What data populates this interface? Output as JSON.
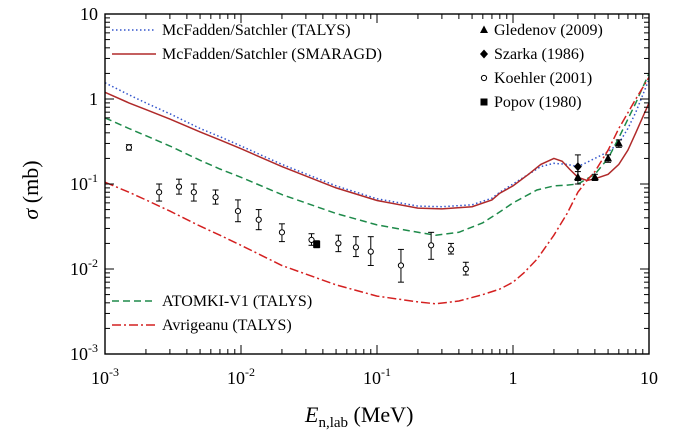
{
  "chart_data": {
    "type": "line",
    "xscale": "log",
    "yscale": "log",
    "xlim": [
      0.001,
      10
    ],
    "ylim": [
      0.001,
      10
    ],
    "xlabel": {
      "main": "E",
      "sub": "n,lab",
      "unit": " (MeV)"
    },
    "ylabel": {
      "main": "σ",
      "unit": " (mb)"
    },
    "x_ticks": [
      {
        "value": 0.001,
        "base": "10",
        "exp": "-3"
      },
      {
        "value": 0.01,
        "base": "10",
        "exp": "-2"
      },
      {
        "value": 0.1,
        "base": "10",
        "exp": "-1"
      },
      {
        "value": 1,
        "text": "1"
      },
      {
        "value": 10,
        "text": "10"
      }
    ],
    "y_ticks": [
      {
        "value": 0.001,
        "base": "10",
        "exp": "-3"
      },
      {
        "value": 0.01,
        "base": "10",
        "exp": "-2"
      },
      {
        "value": 0.1,
        "base": "10",
        "exp": "-1"
      },
      {
        "value": 1,
        "text": "1"
      },
      {
        "value": 10,
        "text": "10"
      }
    ],
    "grid": false,
    "series": [
      {
        "name": "McFadden/Satchler (TALYS)",
        "style": "dotted",
        "color": "#3355cc",
        "legend": "top-left",
        "x": [
          0.001,
          0.0015,
          0.002,
          0.003,
          0.005,
          0.007,
          0.01,
          0.02,
          0.05,
          0.1,
          0.2,
          0.3,
          0.5,
          0.7,
          0.8,
          1.0,
          1.3,
          1.6,
          2.0,
          2.5,
          3.0,
          3.5,
          4.0,
          5.0,
          6.0,
          7.0,
          8.0,
          10.0
        ],
        "y": [
          1.55,
          1.12,
          0.9,
          0.67,
          0.45,
          0.36,
          0.28,
          0.17,
          0.095,
          0.067,
          0.055,
          0.054,
          0.057,
          0.068,
          0.08,
          0.1,
          0.13,
          0.16,
          0.175,
          0.17,
          0.16,
          0.18,
          0.2,
          0.24,
          0.3,
          0.45,
          0.7,
          1.7
        ]
      },
      {
        "name": "McFadden/Satchler (SMARAGD)",
        "style": "solid",
        "color": "#b02a2a",
        "legend": "top-left",
        "x": [
          0.001,
          0.0015,
          0.002,
          0.003,
          0.005,
          0.007,
          0.01,
          0.02,
          0.05,
          0.1,
          0.2,
          0.3,
          0.5,
          0.7,
          0.8,
          1.0,
          1.3,
          1.6,
          2.0,
          2.3,
          2.6,
          3.0,
          3.5,
          4.0,
          5.0,
          6.0,
          7.0,
          8.0,
          10.0
        ],
        "y": [
          1.2,
          0.9,
          0.75,
          0.58,
          0.41,
          0.33,
          0.26,
          0.16,
          0.09,
          0.064,
          0.052,
          0.051,
          0.054,
          0.065,
          0.078,
          0.095,
          0.13,
          0.17,
          0.2,
          0.185,
          0.15,
          0.12,
          0.11,
          0.115,
          0.13,
          0.17,
          0.25,
          0.4,
          0.9
        ]
      },
      {
        "name": "ATOMKI-V1 (TALYS)",
        "style": "dashed",
        "color": "#1e8a4a",
        "legend": "bottom-left",
        "x": [
          0.001,
          0.0015,
          0.002,
          0.003,
          0.005,
          0.007,
          0.01,
          0.02,
          0.05,
          0.1,
          0.2,
          0.27,
          0.4,
          0.6,
          0.8,
          1.0,
          1.5,
          2.0,
          2.5,
          3.0,
          4.0,
          5.0,
          6.0,
          8.0,
          10.0
        ],
        "y": [
          0.6,
          0.45,
          0.37,
          0.28,
          0.19,
          0.15,
          0.12,
          0.075,
          0.045,
          0.033,
          0.027,
          0.025,
          0.027,
          0.035,
          0.047,
          0.06,
          0.085,
          0.095,
          0.097,
          0.1,
          0.13,
          0.2,
          0.35,
          0.9,
          2.0
        ]
      },
      {
        "name": "Avrigeanu (TALYS)",
        "style": "dashdot",
        "color": "#d42020",
        "legend": "bottom-left",
        "x": [
          0.001,
          0.0015,
          0.002,
          0.003,
          0.005,
          0.007,
          0.01,
          0.02,
          0.05,
          0.1,
          0.2,
          0.27,
          0.4,
          0.6,
          0.8,
          1.0,
          1.2,
          1.5,
          2.0,
          2.5,
          3.0,
          3.5,
          4.0,
          5.0,
          6.0,
          8.0,
          10.0
        ],
        "y": [
          0.105,
          0.08,
          0.065,
          0.048,
          0.032,
          0.025,
          0.019,
          0.011,
          0.0065,
          0.0048,
          0.0041,
          0.0039,
          0.0042,
          0.005,
          0.0058,
          0.007,
          0.009,
          0.013,
          0.025,
          0.045,
          0.08,
          0.11,
          0.14,
          0.25,
          0.45,
          1.0,
          1.8
        ]
      }
    ],
    "experimental": [
      {
        "name": "Gledenov (2009)",
        "marker": "triangle",
        "legend_symbol": "▲",
        "points": [
          {
            "x": 3.0,
            "y": 0.12,
            "ylo": 0.1,
            "yhi": 0.14
          },
          {
            "x": 4.0,
            "y": 0.12,
            "ylo": 0.11,
            "yhi": 0.13
          },
          {
            "x": 5.0,
            "y": 0.2,
            "ylo": 0.18,
            "yhi": 0.22
          },
          {
            "x": 6.0,
            "y": 0.3,
            "ylo": 0.27,
            "yhi": 0.33
          }
        ]
      },
      {
        "name": "Szarka (1986)",
        "marker": "diamond",
        "legend_symbol": "◆",
        "points": [
          {
            "x": 3.0,
            "y": 0.16,
            "ylo": 0.11,
            "yhi": 0.22
          }
        ]
      },
      {
        "name": "Koehler (2001)",
        "marker": "open-circle",
        "legend_symbol": "○",
        "points": [
          {
            "x": 0.0015,
            "y": 0.27,
            "ylo": 0.25,
            "yhi": 0.29
          },
          {
            "x": 0.0025,
            "y": 0.08,
            "ylo": 0.063,
            "yhi": 0.1
          },
          {
            "x": 0.0035,
            "y": 0.093,
            "ylo": 0.076,
            "yhi": 0.114
          },
          {
            "x": 0.0045,
            "y": 0.08,
            "ylo": 0.063,
            "yhi": 0.1
          },
          {
            "x": 0.0065,
            "y": 0.07,
            "ylo": 0.058,
            "yhi": 0.085
          },
          {
            "x": 0.0095,
            "y": 0.048,
            "ylo": 0.036,
            "yhi": 0.065
          },
          {
            "x": 0.0135,
            "y": 0.038,
            "ylo": 0.029,
            "yhi": 0.05
          },
          {
            "x": 0.02,
            "y": 0.027,
            "ylo": 0.021,
            "yhi": 0.034
          },
          {
            "x": 0.033,
            "y": 0.022,
            "ylo": 0.019,
            "yhi": 0.026
          },
          {
            "x": 0.052,
            "y": 0.02,
            "ylo": 0.016,
            "yhi": 0.025
          },
          {
            "x": 0.07,
            "y": 0.018,
            "ylo": 0.014,
            "yhi": 0.024
          },
          {
            "x": 0.09,
            "y": 0.016,
            "ylo": 0.011,
            "yhi": 0.024
          },
          {
            "x": 0.15,
            "y": 0.011,
            "ylo": 0.007,
            "yhi": 0.017
          },
          {
            "x": 0.25,
            "y": 0.019,
            "ylo": 0.013,
            "yhi": 0.027
          },
          {
            "x": 0.35,
            "y": 0.017,
            "ylo": 0.015,
            "yhi": 0.02
          },
          {
            "x": 0.45,
            "y": 0.01,
            "ylo": 0.0085,
            "yhi": 0.012
          }
        ]
      },
      {
        "name": "Popov (1980)",
        "marker": "square",
        "legend_symbol": "■",
        "points": [
          {
            "x": 0.036,
            "y": 0.0195,
            "ylo": 0.0178,
            "yhi": 0.0215
          }
        ]
      }
    ]
  }
}
